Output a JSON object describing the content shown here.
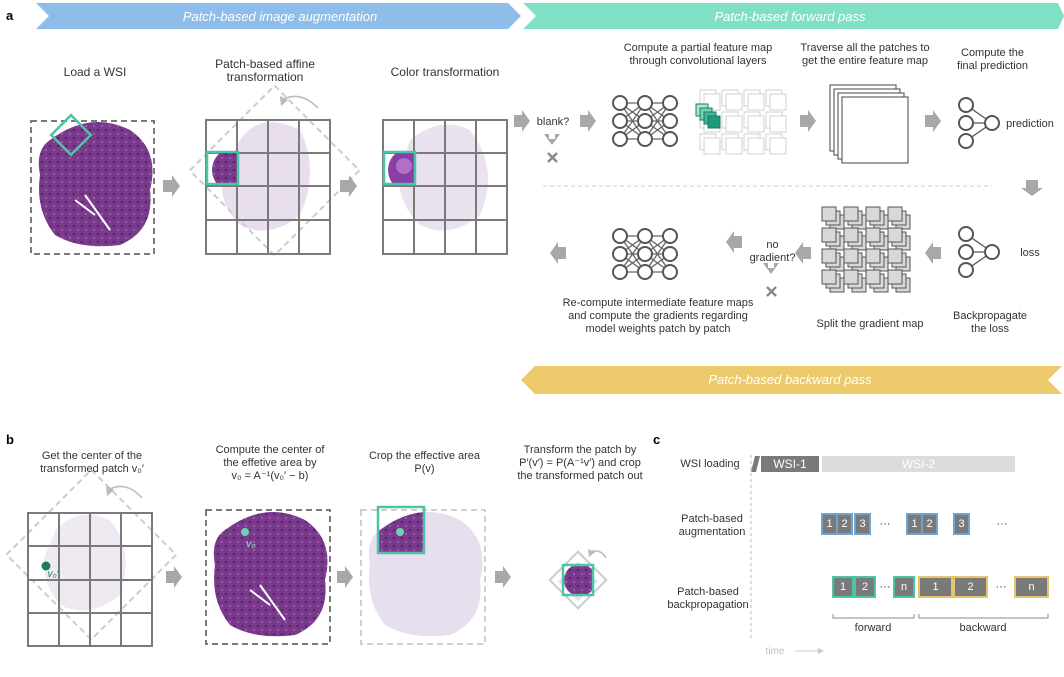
{
  "panels": {
    "a": "a",
    "b": "b",
    "c": "c"
  },
  "banners": {
    "augmentation": "Patch-based image augmentation",
    "forward": "Patch-based forward pass",
    "backward": "Patch-based backward pass"
  },
  "colors": {
    "augmentation_banner": "#8dbde8",
    "forward_banner": "#7fe0c7",
    "backward_banner": "#ecc96a",
    "tissue": "#7a3a8c",
    "highlight": "#4cc4a8",
    "grid": "#7a7a7a",
    "blue_box": "#6fa3d4",
    "green_box": "#4cc4a8",
    "yellow_box": "#e6c46e"
  },
  "a": {
    "load_wsi": "Load a WSI",
    "affine": "Patch-based affine\ntransformation",
    "color": "Color transformation",
    "blank": "blank?",
    "compute_partial": "Compute a partial feature map\nthrough convolutional layers",
    "traverse": "Traverse all the patches to\nget the entire feature map",
    "final_pred": "Compute the\nfinal prediction",
    "prediction": "prediction",
    "loss": "loss",
    "no_gradient": "no\ngradient?",
    "recompute": "Re-compute intermediate feature maps\nand compute the gradients regarding\nmodel weights patch by patch",
    "split": "Split the gradient map",
    "backprop": "Backpropagate\nthe loss"
  },
  "b": {
    "step1": "Get the center of the\ntransformed patch v₀′",
    "step2": "Compute the center of\nthe effetive area by\nv₀ = A⁻¹(v₀′ − b)",
    "step3": "Crop the effective area\nP(v)",
    "step4": "Transform the patch by\nP′(v′) = P(A⁻¹v′) and crop\nthe transformed patch out",
    "v0p": "v₀′",
    "v0": "v₀"
  },
  "c": {
    "wsi_loading": "WSI loading",
    "wsi1": "WSI-1",
    "wsi2": "WSI-2",
    "aug_label": "Patch-based\naugmentation",
    "bp_label": "Patch-based\nbackpropagation",
    "aug_boxes": [
      "1",
      "2",
      "3",
      "1",
      "2",
      "3"
    ],
    "bp_boxes": [
      "1",
      "2",
      "n",
      "1",
      "2",
      "n"
    ],
    "ellipsis": "···",
    "forward": "forward",
    "backward": "backward",
    "time": "time"
  }
}
